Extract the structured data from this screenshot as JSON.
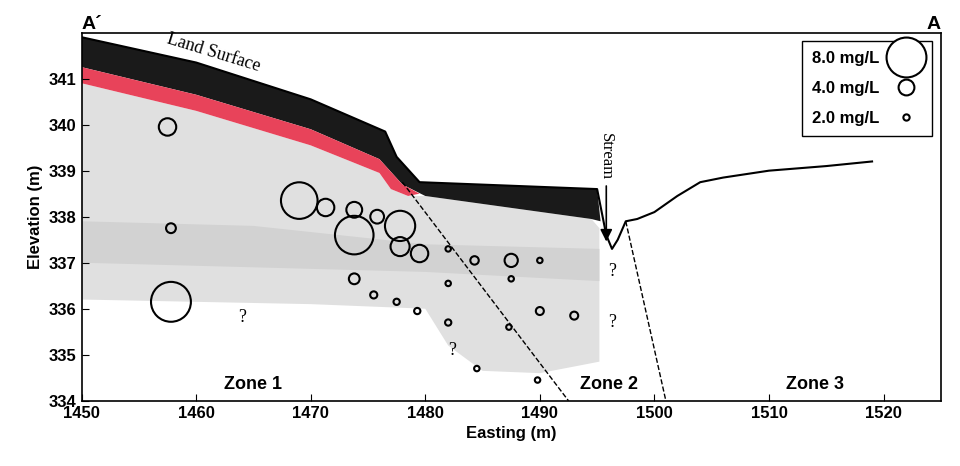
{
  "chart_data": {
    "type": "scatter",
    "xlabel": "Easting (m)",
    "ylabel": "Elevation (m)",
    "xlim": [
      1450,
      1525
    ],
    "ylim": [
      334,
      342
    ],
    "xticks": [
      1450,
      1460,
      1470,
      1480,
      1490,
      1500,
      1510,
      1520
    ],
    "yticks": [
      334,
      335,
      336,
      337,
      338,
      339,
      340,
      341
    ],
    "x": [
      1457.5,
      1457.8,
      1457.8,
      1469.0,
      1471.3,
      1473.8,
      1473.8,
      1475.8,
      1477.8,
      1477.8,
      1479.5,
      1473.8,
      1475.5,
      1477.5,
      1479.3,
      1482.0,
      1484.3,
      1487.5,
      1490.0,
      1482.0,
      1487.5,
      1490.0,
      1493.0,
      1482.0,
      1487.3,
      1484.5,
      1489.8
    ],
    "y": [
      339.95,
      337.75,
      336.15,
      338.35,
      338.2,
      338.15,
      337.6,
      338.0,
      337.8,
      337.35,
      337.2,
      336.65,
      336.3,
      336.15,
      335.95,
      337.3,
      337.05,
      337.05,
      337.05,
      336.55,
      336.65,
      335.95,
      335.85,
      335.7,
      335.6,
      334.7,
      334.45
    ],
    "concentration": [
      4.3,
      2.8,
      8.0,
      7.5,
      4.3,
      4.0,
      7.8,
      3.6,
      6.5,
      4.6,
      4.3,
      3.0,
      2.2,
      2.0,
      2.0,
      1.8,
      2.5,
      3.5,
      1.8,
      1.8,
      1.8,
      2.4,
      2.4,
      2.0,
      1.8,
      1.8,
      1.8
    ],
    "color": "#000000",
    "marker": "circle",
    "legend": "upper right",
    "legend_sizes": [
      {
        "value": 8.0,
        "label": "8.0 mg/L"
      },
      {
        "value": 4.0,
        "label": "4.0 mg/L"
      },
      {
        "value": 2.0,
        "label": "2.0 mg/L"
      }
    ],
    "section_labels": [
      {
        "text": "A´",
        "x": 1450
      },
      {
        "text": "A",
        "x": 1525
      }
    ],
    "land_surface": {
      "x": [
        1450,
        1460,
        1470,
        1476.5,
        1477.5,
        1479.5,
        1495,
        1495.8,
        1496.3,
        1496.8,
        1497.5,
        1498.5,
        1500,
        1502,
        1504,
        1506,
        1510,
        1515,
        1519
      ],
      "y": [
        341.9,
        341.35,
        340.55,
        339.85,
        339.3,
        338.75,
        338.6,
        337.6,
        337.3,
        337.5,
        337.9,
        337.95,
        338.1,
        338.45,
        338.75,
        338.85,
        339.0,
        339.1,
        339.2
      ]
    },
    "layers": [
      {
        "color": "#e0e0e0",
        "x": [
          1450,
          1460,
          1470,
          1476,
          1477,
          1478.5,
          1480,
          1494.5,
          1495.2,
          1495.2,
          1490,
          1485,
          1482,
          1480,
          1470,
          1450
        ],
        "y": [
          340.9,
          340.3,
          339.55,
          338.95,
          338.6,
          338.45,
          338.45,
          337.95,
          337.75,
          334.85,
          334.6,
          334.65,
          335.2,
          336.0,
          336.1,
          336.2
        ]
      },
      {
        "color": "#d2d2d2",
        "x": [
          1450,
          1465,
          1480,
          1495.2,
          1495.2,
          1480,
          1465,
          1450
        ],
        "y": [
          337.9,
          337.8,
          337.4,
          337.3,
          336.6,
          336.8,
          336.9,
          337.0
        ]
      },
      {
        "color": "#1a1a1a",
        "x": [
          1450,
          1460,
          1470,
          1476.5,
          1477.5,
          1479.5,
          1495,
          1495.3,
          1494.5,
          1480,
          1478,
          1476,
          1470,
          1460,
          1450
        ],
        "y": [
          341.9,
          341.35,
          340.55,
          339.85,
          339.3,
          338.75,
          338.6,
          337.9,
          337.95,
          338.45,
          338.7,
          339.25,
          339.9,
          340.65,
          341.25
        ]
      },
      {
        "color": "#e8435a",
        "x": [
          1450,
          1460,
          1470,
          1476,
          1478,
          1479.5,
          1478.5,
          1477,
          1476,
          1470,
          1460,
          1450
        ],
        "y": [
          341.25,
          340.65,
          339.9,
          339.25,
          338.7,
          338.5,
          338.45,
          338.6,
          338.95,
          339.55,
          340.3,
          340.9
        ]
      }
    ],
    "dashed_lines": [
      {
        "x": [
          1478,
          1492.5
        ],
        "y": [
          338.75,
          334
        ]
      },
      {
        "x": [
          1497.5,
          1501
        ],
        "y": [
          337.9,
          334
        ]
      }
    ],
    "annotations": [
      {
        "text": "Land Surface",
        "x": 1461.5,
        "y": 341.55
      },
      {
        "text": "?",
        "x": 1464,
        "y": 335.8
      },
      {
        "text": "?",
        "x": 1496.3,
        "y": 336.8
      },
      {
        "text": "?",
        "x": 1496.3,
        "y": 335.7
      },
      {
        "text": "?",
        "x": 1482.3,
        "y": 335.1
      },
      {
        "text": "Zone 1",
        "x": 1465,
        "y": 334.35
      },
      {
        "text": "Zone 2",
        "x": 1496,
        "y": 334.35
      },
      {
        "text": "Zone 3",
        "x": 1514,
        "y": 334.35
      }
    ],
    "stream": {
      "text": "Stream",
      "x": 1495.8,
      "y": 339.3,
      "arrow_x": 1495.8,
      "arrow_y": 337.4
    }
  }
}
